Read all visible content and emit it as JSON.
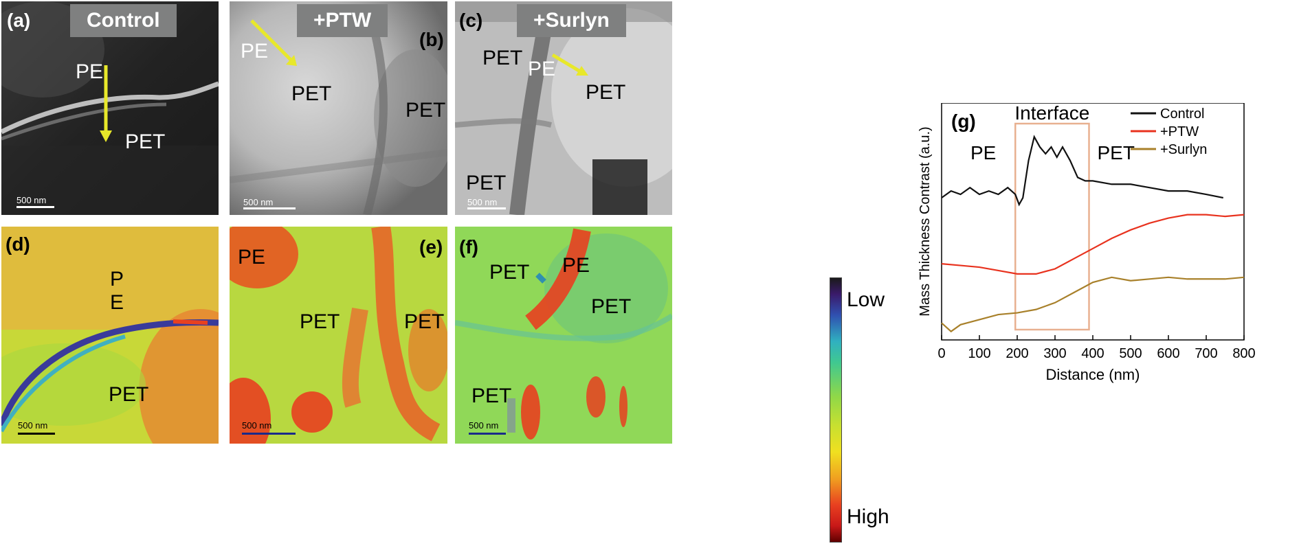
{
  "panels": {
    "a": {
      "label": "(a)",
      "tag": "Control",
      "texts": [
        "PE",
        "PET"
      ],
      "scale": "500 nm"
    },
    "b": {
      "label": "(b)",
      "tag": "+PTW",
      "texts": [
        "PE",
        "PET",
        "PET"
      ],
      "scale": "500 nm"
    },
    "c": {
      "label": "(c)",
      "tag": "+Surlyn",
      "texts": [
        "PET",
        "PE",
        "PET",
        "PET"
      ],
      "scale": "500 nm"
    },
    "d": {
      "label": "(d)",
      "texts": [
        "P",
        "E",
        "PET"
      ],
      "scale": "500 nm"
    },
    "e": {
      "label": "(e)",
      "texts": [
        "PE",
        "PET",
        "PET"
      ],
      "scale": "500 nm"
    },
    "f": {
      "label": "(f)",
      "texts": [
        "PET",
        "PE",
        "PET",
        "PET"
      ],
      "scale": "500 nm"
    }
  },
  "colorbar": {
    "low": "Low",
    "high": "High"
  },
  "colors": {
    "arrow": "#e8e82a",
    "control": "#111111",
    "ptw": "#e8321e",
    "surlyn": "#a8802a",
    "interface_box": "#e8b090"
  },
  "chart_data": {
    "type": "line",
    "panel_label": "(g)",
    "xlabel": "Distance (nm)",
    "ylabel": "Mass Thickness Contrast (a.u.)",
    "xlim": [
      0,
      800
    ],
    "xticks": [
      0,
      100,
      200,
      300,
      400,
      500,
      600,
      700,
      800
    ],
    "annotations": {
      "interface": "Interface",
      "left": "PE",
      "right": "PET"
    },
    "interface_range": [
      195,
      390
    ],
    "legend_position": "top-right",
    "series": [
      {
        "name": "Control",
        "color": "#111111",
        "x": [
          0,
          25,
          50,
          75,
          100,
          125,
          150,
          175,
          195,
          205,
          215,
          230,
          245,
          260,
          275,
          290,
          305,
          320,
          340,
          360,
          380,
          400,
          450,
          500,
          550,
          600,
          650,
          700,
          745
        ],
        "y": [
          2.5,
          2.7,
          2.6,
          2.8,
          2.6,
          2.7,
          2.6,
          2.8,
          2.6,
          2.3,
          2.5,
          3.6,
          4.3,
          4.0,
          3.8,
          4.0,
          3.7,
          4.0,
          3.6,
          3.1,
          3.0,
          3.0,
          2.9,
          2.9,
          2.8,
          2.7,
          2.7,
          2.6,
          2.5
        ]
      },
      {
        "name": "+PTW",
        "color": "#e8321e",
        "x": [
          0,
          50,
          100,
          150,
          200,
          250,
          300,
          350,
          400,
          450,
          500,
          550,
          600,
          650,
          700,
          750,
          800
        ],
        "y": [
          0.55,
          0.5,
          0.45,
          0.35,
          0.25,
          0.25,
          0.4,
          0.7,
          1.0,
          1.3,
          1.55,
          1.75,
          1.9,
          2.0,
          2.0,
          1.95,
          2.0
        ]
      },
      {
        "name": "+Surlyn",
        "color": "#a8802a",
        "x": [
          0,
          25,
          50,
          100,
          150,
          200,
          250,
          300,
          350,
          400,
          450,
          500,
          550,
          600,
          650,
          700,
          750,
          800
        ],
        "y": [
          -1.2,
          -1.45,
          -1.25,
          -1.1,
          -0.95,
          -0.9,
          -0.8,
          -0.6,
          -0.3,
          0.0,
          0.15,
          0.05,
          0.1,
          0.15,
          0.1,
          0.1,
          0.1,
          0.15
        ]
      }
    ]
  }
}
